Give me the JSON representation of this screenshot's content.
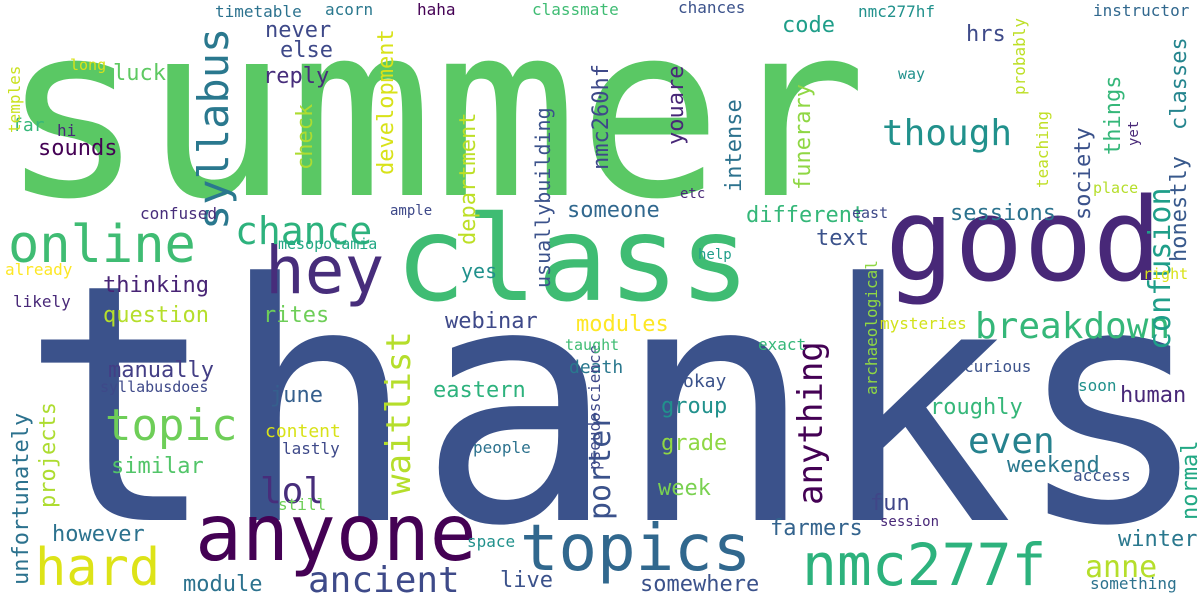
{
  "words": [
    {
      "text": "summer",
      "color": "#5ac864"
    },
    {
      "text": "thanks",
      "color": "#3b528b"
    },
    {
      "text": "class",
      "color": "#3fbc73"
    },
    {
      "text": "good",
      "color": "#482878"
    },
    {
      "text": "anyone",
      "color": "#440154"
    },
    {
      "text": "hey",
      "color": "#472d7b"
    },
    {
      "text": "online",
      "color": "#3fbc73"
    },
    {
      "text": "topics",
      "color": "#31688e"
    },
    {
      "text": "nmc277f",
      "color": "#2db27d"
    },
    {
      "text": "hard",
      "color": "#dde318"
    },
    {
      "text": "chance",
      "color": "#2db27d"
    },
    {
      "text": "topic",
      "color": "#6ece58"
    },
    {
      "text": "syllabus",
      "color": "#2a788e"
    },
    {
      "text": "though",
      "color": "#21918c"
    },
    {
      "text": "ancient",
      "color": "#3e4a89"
    },
    {
      "text": "breakdown",
      "color": "#35b779"
    },
    {
      "text": "even",
      "color": "#26828e"
    },
    {
      "text": "lol",
      "color": "#472d7b"
    },
    {
      "text": "confusion",
      "color": "#1f9e89"
    },
    {
      "text": "anything",
      "color": "#440154"
    },
    {
      "text": "waitlist",
      "color": "#b5de2b"
    },
    {
      "text": "porter",
      "color": "#3b528b"
    },
    {
      "text": "anne",
      "color": "#b5de2b"
    },
    {
      "text": "honestly",
      "color": "#38598c"
    },
    {
      "text": "classes",
      "color": "#25858e"
    },
    {
      "text": "sounds",
      "color": "#440154"
    },
    {
      "text": "luck",
      "color": "#5ec962"
    },
    {
      "text": "reply",
      "color": "#472d7b"
    },
    {
      "text": "never",
      "color": "#3e4989"
    },
    {
      "text": "else",
      "color": "#3e4989"
    },
    {
      "text": "code",
      "color": "#1f9e89"
    },
    {
      "text": "hrs",
      "color": "#3e4a89"
    },
    {
      "text": "things",
      "color": "#35b779"
    },
    {
      "text": "society",
      "color": "#3b528b"
    },
    {
      "text": "check",
      "color": "#addc30"
    },
    {
      "text": "development",
      "color": "#d8e219"
    },
    {
      "text": "department",
      "color": "#bddf26"
    },
    {
      "text": "usuallybuilding",
      "color": "#3b528b"
    },
    {
      "text": "nmc260hf",
      "color": "#3e4989"
    },
    {
      "text": "youare",
      "color": "#482878"
    },
    {
      "text": "intense",
      "color": "#2c728e"
    },
    {
      "text": "funerary",
      "color": "#8fd744"
    },
    {
      "text": "someone",
      "color": "#31688e"
    },
    {
      "text": "different",
      "color": "#35b779"
    },
    {
      "text": "sessions",
      "color": "#2c728e"
    },
    {
      "text": "text",
      "color": "#3b528b"
    },
    {
      "text": "thinking",
      "color": "#482475"
    },
    {
      "text": "question",
      "color": "#b5de2b"
    },
    {
      "text": "rites",
      "color": "#6ece58"
    },
    {
      "text": "webinar",
      "color": "#3e4989"
    },
    {
      "text": "yes",
      "color": "#21918c"
    },
    {
      "text": "modules",
      "color": "#fde725"
    },
    {
      "text": "manually",
      "color": "#433e85"
    },
    {
      "text": "june",
      "color": "#355f8d"
    },
    {
      "text": "eastern",
      "color": "#2db27d"
    },
    {
      "text": "group",
      "color": "#21918c"
    },
    {
      "text": "roughly",
      "color": "#35b779"
    },
    {
      "text": "human",
      "color": "#482878"
    },
    {
      "text": "grade",
      "color": "#8fd744"
    },
    {
      "text": "similar",
      "color": "#52c569"
    },
    {
      "text": "week",
      "color": "#7ad151"
    },
    {
      "text": "weekend",
      "color": "#2a788e"
    },
    {
      "text": "fun",
      "color": "#404688"
    },
    {
      "text": "farmers",
      "color": "#33638d"
    },
    {
      "text": "however",
      "color": "#2c728e"
    },
    {
      "text": "module",
      "color": "#2c728e"
    },
    {
      "text": "live",
      "color": "#3b528b"
    },
    {
      "text": "somewhere",
      "color": "#3b528b"
    },
    {
      "text": "winter",
      "color": "#2a788e"
    },
    {
      "text": "unfortunately",
      "color": "#2c728e"
    },
    {
      "text": "projects",
      "color": "#addc30"
    },
    {
      "text": "normal",
      "color": "#22a884"
    },
    {
      "text": "okay",
      "color": "#3b528b"
    },
    {
      "text": "death",
      "color": "#2a788e"
    },
    {
      "text": "content",
      "color": "#d8e219"
    },
    {
      "text": "lastly",
      "color": "#3e4989"
    },
    {
      "text": "people",
      "color": "#2c728e"
    },
    {
      "text": "pseudoscience",
      "color": "#3e4989"
    },
    {
      "text": "still",
      "color": "#6ece58"
    },
    {
      "text": "space",
      "color": "#21918c"
    },
    {
      "text": "session",
      "color": "#482878"
    },
    {
      "text": "access",
      "color": "#3b528b"
    },
    {
      "text": "something",
      "color": "#2c728e"
    },
    {
      "text": "curious",
      "color": "#3b528b"
    },
    {
      "text": "soon",
      "color": "#21918c"
    },
    {
      "text": "exact",
      "color": "#35b779"
    },
    {
      "text": "mysteries",
      "color": "#d2e21b"
    },
    {
      "text": "archaeological",
      "color": "#8fd744"
    },
    {
      "text": "taught",
      "color": "#3fbc73"
    },
    {
      "text": "syllabusdoes",
      "color": "#3e4989"
    },
    {
      "text": "far",
      "color": "#35b779"
    },
    {
      "text": "temples",
      "color": "#cae11f"
    },
    {
      "text": "hi",
      "color": "#482878"
    },
    {
      "text": "long",
      "color": "#d8e219"
    },
    {
      "text": "confused",
      "color": "#472d7b"
    },
    {
      "text": "ample",
      "color": "#3e4989"
    },
    {
      "text": "mesopotamia",
      "color": "#22a884"
    },
    {
      "text": "already",
      "color": "#fde725"
    },
    {
      "text": "likely",
      "color": "#482878"
    },
    {
      "text": "timetable",
      "color": "#2c728e"
    },
    {
      "text": "acorn",
      "color": "#2a788e"
    },
    {
      "text": "haha",
      "color": "#440154"
    },
    {
      "text": "classmate",
      "color": "#3fbc73"
    },
    {
      "text": "chances",
      "color": "#3b528b"
    },
    {
      "text": "nmc277hf",
      "color": "#21918c"
    },
    {
      "text": "instructor",
      "color": "#31688e"
    },
    {
      "text": "teaching",
      "color": "#c0df25"
    },
    {
      "text": "probably",
      "color": "#bddf26"
    },
    {
      "text": "way",
      "color": "#21918c"
    },
    {
      "text": "etc",
      "color": "#482878"
    },
    {
      "text": "east",
      "color": "#3e4989"
    },
    {
      "text": "help",
      "color": "#1f9e89"
    },
    {
      "text": "yet",
      "color": "#482878"
    },
    {
      "text": "place",
      "color": "#b5de2b"
    },
    {
      "text": "right",
      "color": "#d8e219"
    }
  ]
}
